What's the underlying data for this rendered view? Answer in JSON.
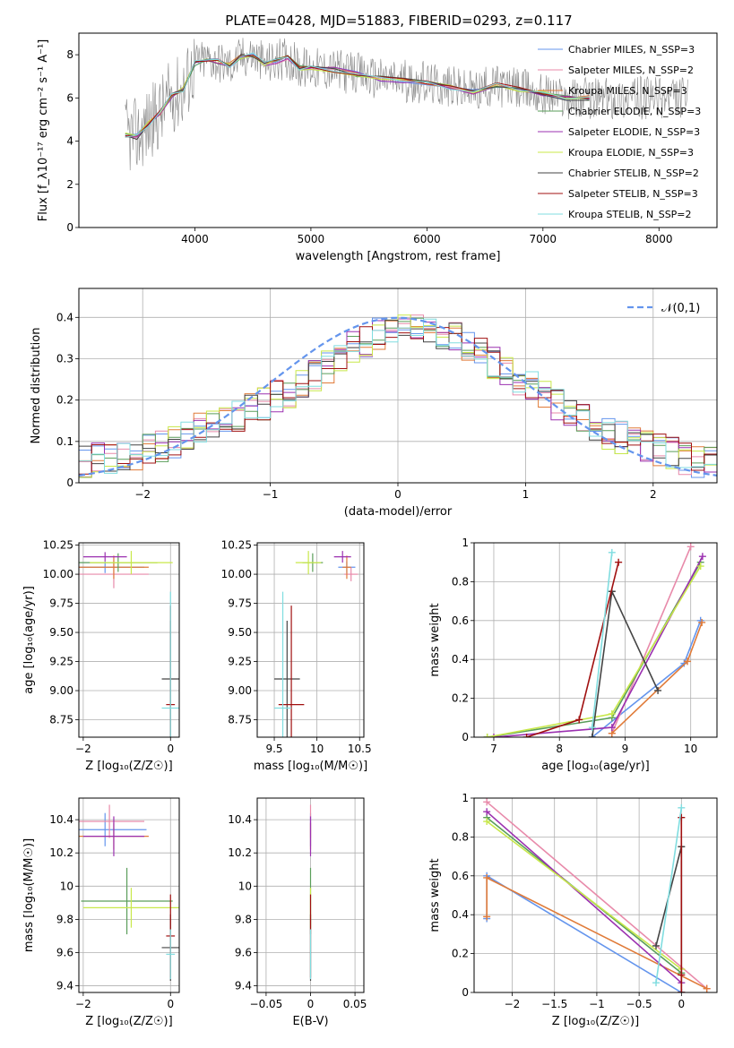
{
  "figure_title": "PLATE=0428, MJD=51883, FIBERID=0293, z=0.117",
  "chart_data": [
    {
      "id": "spectrum",
      "type": "line",
      "title": "PLATE=0428, MJD=51883, FIBERID=0293, z=0.117",
      "xlabel": "wavelength [Angstrom, rest frame]",
      "ylabel": "Flux [f_λ10⁻¹⁷ erg cm⁻² s⁻¹ A⁻¹]",
      "xlim": [
        3000,
        8500
      ],
      "ylim": [
        0,
        9
      ],
      "xticks": [
        4000,
        5000,
        6000,
        7000,
        8000
      ],
      "yticks": [
        0,
        2,
        4,
        6,
        8
      ],
      "grid": false,
      "legend_position": "top-right",
      "legend": [
        {
          "label": "Chabrier MILES, N_SSP=3",
          "color": "#6495ed"
        },
        {
          "label": "Salpeter MILES, N_SSP=2",
          "color": "#e88aaa"
        },
        {
          "label": "Kroupa MILES, N_SSP=3",
          "color": "#e07b39"
        },
        {
          "label": "Chabrier ELODIE, N_SSP=3",
          "color": "#5a9e5a"
        },
        {
          "label": "Salpeter ELODIE, N_SSP=3",
          "color": "#9b30b0"
        },
        {
          "label": "Kroupa ELODIE, N_SSP=3",
          "color": "#c8e84a"
        },
        {
          "label": "Chabrier STELIB, N_SSP=2",
          "color": "#444444"
        },
        {
          "label": "Salpeter STELIB, N_SSP=3",
          "color": "#a01010"
        },
        {
          "label": "Kroupa STELIB, N_SSP=2",
          "color": "#80dde0"
        }
      ],
      "data_color": "#888888",
      "model_x": [
        3400,
        3500,
        3600,
        3700,
        3800,
        3900,
        4000,
        4100,
        4200,
        4300,
        4400,
        4500,
        4600,
        4700,
        4800,
        4900,
        5000,
        5200,
        5400,
        5600,
        5800,
        6000,
        6200,
        6400,
        6600,
        6800,
        7000,
        7200,
        7400
      ],
      "model_y": [
        4.3,
        4.2,
        4.8,
        5.3,
        6.1,
        6.4,
        7.6,
        7.8,
        7.7,
        7.5,
        7.9,
        8.0,
        7.6,
        7.7,
        7.9,
        7.4,
        7.4,
        7.3,
        7.1,
        6.9,
        6.8,
        6.7,
        6.5,
        6.3,
        6.6,
        6.4,
        6.2,
        6.0,
        6.0
      ]
    },
    {
      "id": "residuals",
      "type": "step",
      "xlabel": "(data-model)/error",
      "ylabel": "Normed distribution",
      "xlim": [
        -2.5,
        2.5
      ],
      "ylim": [
        0,
        0.47
      ],
      "xticks": [
        -2,
        -1,
        0,
        1,
        2
      ],
      "yticks": [
        0.0,
        0.1,
        0.2,
        0.3,
        0.4
      ],
      "grid": true,
      "legend_position": "top-right",
      "reference_label": "𝒩(0,1)",
      "reference_color": "#6495ed",
      "bin_width": 0.1,
      "bin_start": -2.5,
      "base_values": [
        0.05,
        0.06,
        0.06,
        0.07,
        0.07,
        0.08,
        0.09,
        0.1,
        0.11,
        0.13,
        0.14,
        0.15,
        0.16,
        0.18,
        0.19,
        0.21,
        0.22,
        0.24,
        0.26,
        0.28,
        0.31,
        0.33,
        0.34,
        0.36,
        0.37,
        0.38,
        0.37,
        0.36,
        0.35,
        0.35,
        0.33,
        0.31,
        0.29,
        0.27,
        0.25,
        0.23,
        0.21,
        0.19,
        0.17,
        0.15,
        0.13,
        0.12,
        0.11,
        0.1,
        0.09,
        0.08,
        0.07,
        0.06,
        0.05,
        0.05
      ]
    },
    {
      "id": "age-vs-Z",
      "type": "errorbar",
      "xlabel": "Z [log₁₀(Z/Z☉)]",
      "ylabel": "age  [log₁₀(age/yr)]",
      "xlim": [
        -2.1,
        0.2
      ],
      "ylim": [
        8.6,
        10.27
      ],
      "xticks": [
        -2,
        0
      ],
      "yticks": [
        8.75,
        9.0,
        9.25,
        9.5,
        9.75,
        10.0,
        10.25
      ],
      "points": [
        {
          "x": -1.5,
          "y": 10.06,
          "xerr": 0.9,
          "yerr": 0.05,
          "color": "#6495ed"
        },
        {
          "x": -1.3,
          "y": 10.0,
          "xerr": 0.8,
          "yerr": 0.12,
          "color": "#e88aaa"
        },
        {
          "x": -1.3,
          "y": 10.06,
          "xerr": 0.8,
          "yerr": 0.1,
          "color": "#e07b39"
        },
        {
          "x": -1.2,
          "y": 10.1,
          "xerr": 0.9,
          "yerr": 0.08,
          "color": "#5a9e5a"
        },
        {
          "x": -1.5,
          "y": 10.15,
          "xerr": 0.5,
          "yerr": 0.04,
          "color": "#9b30b0"
        },
        {
          "x": -0.9,
          "y": 10.1,
          "xerr": 0.95,
          "yerr": 0.1,
          "color": "#c8e84a"
        },
        {
          "x": 0.0,
          "y": 9.1,
          "xerr": 0.2,
          "yerr": 0.5,
          "color": "#444444"
        },
        {
          "x": 0.0,
          "y": 8.88,
          "xerr": 0.1,
          "yerr": 0.85,
          "color": "#a01010"
        },
        {
          "x": 0.0,
          "y": 8.85,
          "xerr": 0.2,
          "yerr": 1.0,
          "color": "#80dde0"
        }
      ]
    },
    {
      "id": "age-vs-mass",
      "type": "errorbar",
      "xlabel": "mass [log₁₀(M/M☉)]",
      "xlim": [
        9.3,
        10.55
      ],
      "ylim": [
        8.6,
        10.27
      ],
      "xticks": [
        9.5,
        10.0,
        10.5
      ],
      "yticks": [
        8.75,
        9.0,
        9.25,
        9.5,
        9.75,
        10.0,
        10.25
      ],
      "points": [
        {
          "x": 10.35,
          "y": 10.06,
          "xerr": 0.1,
          "yerr": 0.05,
          "color": "#6495ed"
        },
        {
          "x": 10.4,
          "y": 10.0,
          "xerr": 0.08,
          "yerr": 0.06,
          "color": "#e88aaa"
        },
        {
          "x": 10.35,
          "y": 10.06,
          "xerr": 0.05,
          "yerr": 0.1,
          "color": "#e07b39"
        },
        {
          "x": 9.95,
          "y": 10.1,
          "xerr": 0.12,
          "yerr": 0.08,
          "color": "#5a9e5a"
        },
        {
          "x": 10.3,
          "y": 10.15,
          "xerr": 0.1,
          "yerr": 0.05,
          "color": "#9b30b0"
        },
        {
          "x": 9.9,
          "y": 10.1,
          "xerr": 0.15,
          "yerr": 0.1,
          "color": "#c8e84a"
        },
        {
          "x": 9.65,
          "y": 9.1,
          "xerr": 0.15,
          "yerr": 0.5,
          "color": "#444444"
        },
        {
          "x": 9.7,
          "y": 8.88,
          "xerr": 0.15,
          "yerr": 0.85,
          "color": "#a01010"
        },
        {
          "x": 9.6,
          "y": 8.85,
          "xerr": 0.1,
          "yerr": 1.0,
          "color": "#80dde0"
        }
      ]
    },
    {
      "id": "massweight-vs-age",
      "type": "line",
      "xlabel": "age  [log₁₀(age/yr)]",
      "ylabel": "mass weight",
      "xlim": [
        6.7,
        10.4
      ],
      "ylim": [
        0,
        1.0
      ],
      "xticks": [
        7,
        8,
        9,
        10
      ],
      "yticks": [
        0.0,
        0.2,
        0.4,
        0.6,
        0.8,
        1.0
      ],
      "grid": true,
      "series": [
        {
          "color": "#6495ed",
          "x": [
            8.5,
            9.9,
            10.15
          ],
          "y": [
            0.0,
            0.38,
            0.6
          ]
        },
        {
          "color": "#e88aaa",
          "x": [
            8.8,
            10.0
          ],
          "y": [
            0.02,
            0.98
          ]
        },
        {
          "color": "#e07b39",
          "x": [
            8.8,
            9.95,
            10.17
          ],
          "y": [
            0.02,
            0.39,
            0.59
          ]
        },
        {
          "color": "#5a9e5a",
          "x": [
            6.9,
            8.8,
            10.15
          ],
          "y": [
            0.0,
            0.1,
            0.9
          ]
        },
        {
          "color": "#9b30b0",
          "x": [
            7.0,
            8.8,
            10.18
          ],
          "y": [
            0.0,
            0.05,
            0.93
          ]
        },
        {
          "color": "#c8e84a",
          "x": [
            6.9,
            8.8,
            10.15
          ],
          "y": [
            0.0,
            0.12,
            0.88
          ]
        },
        {
          "color": "#444444",
          "x": [
            8.5,
            8.8,
            9.5
          ],
          "y": [
            0.0,
            0.75,
            0.24
          ]
        },
        {
          "color": "#a01010",
          "x": [
            7.5,
            8.3,
            8.9
          ],
          "y": [
            0.0,
            0.09,
            0.9
          ]
        },
        {
          "color": "#80dde0",
          "x": [
            8.5,
            8.8
          ],
          "y": [
            0.05,
            0.95
          ]
        }
      ]
    },
    {
      "id": "mass-vs-Z",
      "type": "errorbar",
      "xlabel": "Z [log₁₀(Z/Z☉)]",
      "ylabel": "mass [log₁₀(M/M☉)]",
      "xlim": [
        -2.1,
        0.2
      ],
      "ylim": [
        9.36,
        10.53
      ],
      "xticks": [
        -2,
        0
      ],
      "yticks": [
        9.4,
        9.6,
        9.8,
        10.0,
        10.2,
        10.4
      ],
      "points": [
        {
          "x": -1.5,
          "y": 10.34,
          "xerr": 0.95,
          "yerr": 0.1,
          "color": "#6495ed"
        },
        {
          "x": -1.4,
          "y": 10.39,
          "xerr": 0.8,
          "yerr": 0.1,
          "color": "#e88aaa"
        },
        {
          "x": -1.3,
          "y": 10.3,
          "xerr": 0.8,
          "yerr": 0.08,
          "color": "#e07b39"
        },
        {
          "x": -1.0,
          "y": 9.91,
          "xerr": 1.05,
          "yerr": 0.2,
          "color": "#5a9e5a"
        },
        {
          "x": -1.3,
          "y": 10.3,
          "xerr": 0.7,
          "yerr": 0.12,
          "color": "#9b30b0"
        },
        {
          "x": -0.9,
          "y": 9.87,
          "xerr": 1.1,
          "yerr": 0.12,
          "color": "#c8e84a"
        },
        {
          "x": 0.0,
          "y": 9.63,
          "xerr": 0.2,
          "yerr": 0.2,
          "color": "#444444"
        },
        {
          "x": 0.0,
          "y": 9.7,
          "xerr": 0.1,
          "yerr": 0.25,
          "color": "#a01010"
        },
        {
          "x": 0.0,
          "y": 9.59,
          "xerr": 0.1,
          "yerr": 0.15,
          "color": "#80dde0"
        }
      ]
    },
    {
      "id": "mass-vs-EBV",
      "type": "errorbar",
      "xlabel": "E(B-V)",
      "xlim": [
        -0.06,
        0.06
      ],
      "ylim": [
        9.36,
        10.53
      ],
      "xticks": [
        -0.05,
        0.0,
        0.05
      ],
      "yticks": [
        9.4,
        9.6,
        9.8,
        10.0,
        10.2,
        10.4
      ],
      "points": [
        {
          "x": 0.0,
          "y": 10.34,
          "xerr": 0.0,
          "yerr": 0.1,
          "color": "#6495ed"
        },
        {
          "x": 0.0,
          "y": 10.39,
          "xerr": 0.0,
          "yerr": 0.1,
          "color": "#e88aaa"
        },
        {
          "x": 0.0,
          "y": 10.3,
          "xerr": 0.0,
          "yerr": 0.08,
          "color": "#e07b39"
        },
        {
          "x": 0.0,
          "y": 9.91,
          "xerr": 0.0,
          "yerr": 0.2,
          "color": "#5a9e5a"
        },
        {
          "x": 0.0,
          "y": 10.3,
          "xerr": 0.0,
          "yerr": 0.12,
          "color": "#9b30b0"
        },
        {
          "x": 0.0,
          "y": 9.87,
          "xerr": 0.0,
          "yerr": 0.12,
          "color": "#c8e84a"
        },
        {
          "x": 0.0,
          "y": 9.63,
          "xerr": 0.0,
          "yerr": 0.2,
          "color": "#444444"
        },
        {
          "x": 0.0,
          "y": 9.7,
          "xerr": 0.0,
          "yerr": 0.25,
          "color": "#a01010"
        },
        {
          "x": 0.0,
          "y": 9.59,
          "xerr": 0.0,
          "yerr": 0.15,
          "color": "#80dde0"
        }
      ]
    },
    {
      "id": "massweight-vs-Z",
      "type": "line",
      "xlabel": "Z [log₁₀(Z/Z☉)]",
      "ylabel": "mass weight",
      "xlim": [
        -2.45,
        0.42
      ],
      "ylim": [
        0,
        1.0
      ],
      "xticks": [
        -2.0,
        -1.5,
        -1.0,
        -0.5,
        0.0
      ],
      "yticks": [
        0.0,
        0.2,
        0.4,
        0.6,
        0.8,
        1.0
      ],
      "grid": true,
      "series": [
        {
          "color": "#6495ed",
          "x": [
            -2.3,
            -2.3,
            0.0
          ],
          "y": [
            0.38,
            0.6,
            0.0
          ]
        },
        {
          "color": "#e88aaa",
          "x": [
            -2.3,
            0.3
          ],
          "y": [
            0.98,
            0.02
          ]
        },
        {
          "color": "#e07b39",
          "x": [
            -2.3,
            -2.3,
            0.3
          ],
          "y": [
            0.39,
            0.59,
            0.02
          ]
        },
        {
          "color": "#5a9e5a",
          "x": [
            -2.3,
            0.0
          ],
          "y": [
            0.9,
            0.1
          ]
        },
        {
          "color": "#9b30b0",
          "x": [
            -2.3,
            0.0
          ],
          "y": [
            0.93,
            0.05
          ]
        },
        {
          "color": "#c8e84a",
          "x": [
            -2.3,
            0.0
          ],
          "y": [
            0.88,
            0.12
          ]
        },
        {
          "color": "#444444",
          "x": [
            -0.3,
            0.0,
            0.0
          ],
          "y": [
            0.24,
            0.75,
            0.0
          ]
        },
        {
          "color": "#a01010",
          "x": [
            0.0,
            0.0,
            0.0
          ],
          "y": [
            0.0,
            0.09,
            0.9
          ]
        },
        {
          "color": "#80dde0",
          "x": [
            -0.3,
            0.0
          ],
          "y": [
            0.05,
            0.95
          ]
        }
      ]
    }
  ]
}
